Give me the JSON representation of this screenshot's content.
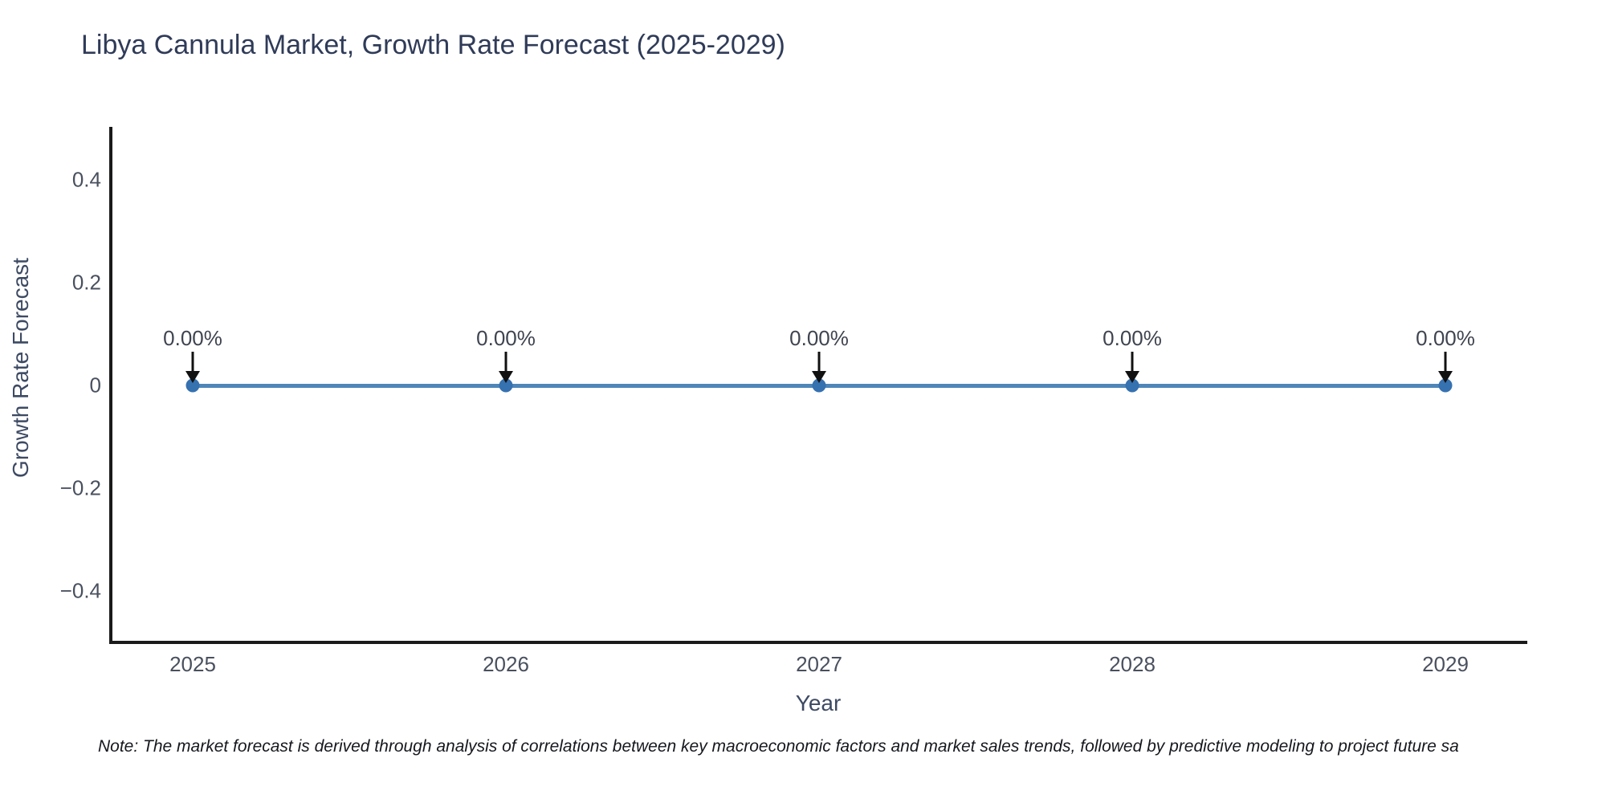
{
  "chart_data": {
    "type": "line",
    "title": "Libya Cannula Market, Growth Rate Forecast (2025-2029)",
    "xlabel": "Year",
    "ylabel": "Growth Rate Forecast",
    "categories": [
      "2025",
      "2026",
      "2027",
      "2028",
      "2029"
    ],
    "series": [
      {
        "name": "Growth Rate Forecast",
        "values": [
          0,
          0,
          0,
          0,
          0
        ]
      }
    ],
    "point_labels": [
      "0.00%",
      "0.00%",
      "0.00%",
      "0.00%",
      "0.00%"
    ],
    "yticks": [
      0.4,
      0.2,
      0,
      -0.2,
      -0.4
    ],
    "ytick_labels": [
      "0.4",
      "0.2",
      "0",
      "−0.2",
      "−0.4"
    ],
    "ylim": [
      -0.5,
      0.5
    ],
    "grid": false,
    "legend_position": "none",
    "colors": {
      "line": "#4e86b8",
      "marker": "#3671b0",
      "arrow": "#111111",
      "spine": "#1a1a1a",
      "title_text": "#2f3b58",
      "axis_text": "#49505e"
    }
  },
  "note": "Note: The market forecast is derived through analysis of correlations between key macroeconomic factors and market sales trends, followed by predictive modeling to project future sa"
}
